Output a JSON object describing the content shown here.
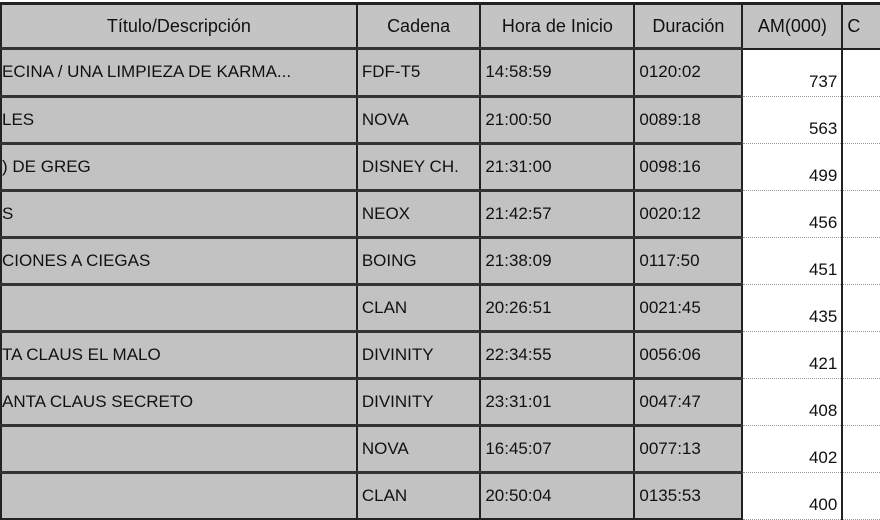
{
  "table": {
    "headers": [
      "Título/Descripción",
      "Cadena",
      "Hora de Inicio",
      "Duración",
      "AM(000)",
      "C"
    ],
    "rows": [
      {
        "titulo": "ECINA / UNA LIMPIEZA DE KARMA...",
        "cadena": "FDF-T5",
        "hora": "14:58:59",
        "duracion": "0120:02",
        "am": "737"
      },
      {
        "titulo": "LES",
        "cadena": "NOVA",
        "hora": "21:00:50",
        "duracion": "0089:18",
        "am": "563"
      },
      {
        "titulo": ") DE GREG",
        "cadena": "DISNEY CH.",
        "hora": "21:31:00",
        "duracion": "0098:16",
        "am": "499"
      },
      {
        "titulo": "S",
        "cadena": "NEOX",
        "hora": "21:42:57",
        "duracion": "0020:12",
        "am": "456"
      },
      {
        "titulo": "CIONES A CIEGAS",
        "cadena": "BOING",
        "hora": "21:38:09",
        "duracion": "0117:50",
        "am": "451"
      },
      {
        "titulo": "",
        "cadena": "CLAN",
        "hora": "20:26:51",
        "duracion": "0021:45",
        "am": "435"
      },
      {
        "titulo": "TA CLAUS EL MALO",
        "cadena": "DIVINITY",
        "hora": "22:34:55",
        "duracion": "0056:06",
        "am": "421"
      },
      {
        "titulo": "ANTA CLAUS SECRETO",
        "cadena": "DIVINITY",
        "hora": "23:31:01",
        "duracion": "0047:47",
        "am": "408"
      },
      {
        "titulo": "",
        "cadena": "NOVA",
        "hora": "16:45:07",
        "duracion": "0077:13",
        "am": "402"
      },
      {
        "titulo": "",
        "cadena": "CLAN",
        "hora": "20:50:04",
        "duracion": "0135:53",
        "am": "400"
      }
    ]
  }
}
